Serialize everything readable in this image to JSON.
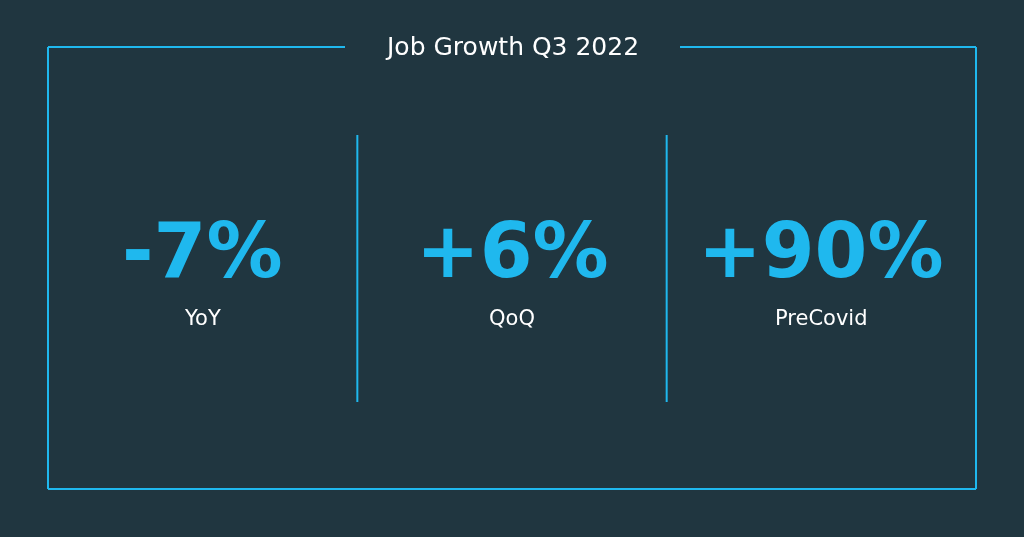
{
  "chart_data": {
    "type": "other",
    "title": "Job Growth Q3 2022",
    "categories": [
      "YoY",
      "QoQ",
      "PreCovid"
    ],
    "values": [
      -7,
      6,
      90
    ],
    "value_labels": [
      "-7%",
      "+6%",
      "+90%"
    ],
    "color": "#1fb8ee"
  }
}
